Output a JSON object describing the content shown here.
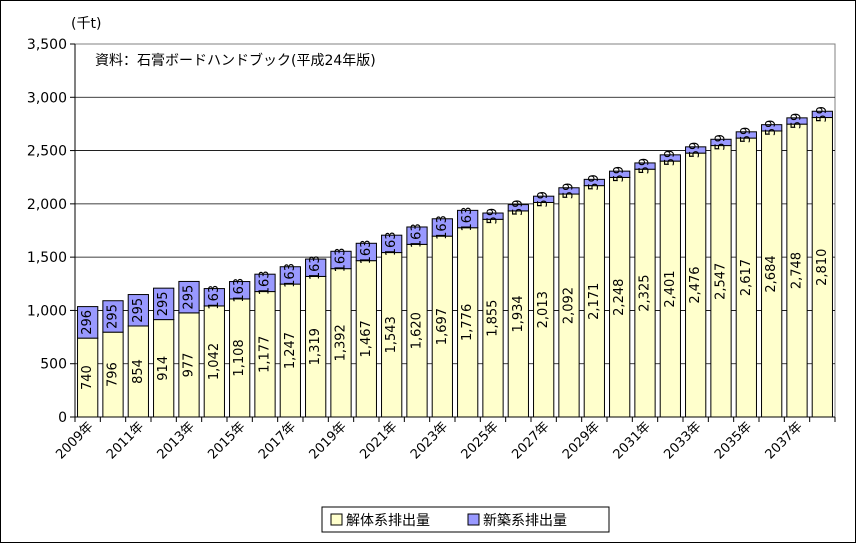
{
  "chart_data": {
    "type": "bar",
    "stacked": true,
    "unit_label": "(千t)",
    "source_note": "資料：石膏ボードハンドブック(平成24年版)",
    "ylim": [
      0,
      3500
    ],
    "yticks": [
      0,
      500,
      1000,
      1500,
      2000,
      2500,
      3000,
      3500
    ],
    "ytick_labels": [
      "0",
      "500",
      "1,000",
      "1,500",
      "2,000",
      "2,500",
      "3,000",
      "3,500"
    ],
    "grid": true,
    "legend_position": "bottom",
    "categories": [
      "2009年",
      "2010年",
      "2011年",
      "2012年",
      "2013年",
      "2014年",
      "2015年",
      "2016年",
      "2017年",
      "2018年",
      "2019年",
      "2020年",
      "2021年",
      "2022年",
      "2023年",
      "2024年",
      "2025年",
      "2026年",
      "2027年",
      "2028年",
      "2029年",
      "2030年",
      "2031年",
      "2032年",
      "2033年",
      "2034年",
      "2035年",
      "2036年",
      "2037年",
      "2038年"
    ],
    "category_labels": [
      "2009年",
      "",
      "2011年",
      "",
      "2013年",
      "",
      "2015年",
      "",
      "2017年",
      "",
      "2019年",
      "",
      "2021年",
      "",
      "2023年",
      "",
      "2025年",
      "",
      "2027年",
      "",
      "2029年",
      "",
      "2031年",
      "",
      "2033年",
      "",
      "2035年",
      "",
      "2037年",
      ""
    ],
    "series": [
      {
        "name": "解体系排出量",
        "color": "#ffffcc",
        "values": [
          740,
          796,
          854,
          914,
          977,
          1042,
          1108,
          1177,
          1247,
          1319,
          1392,
          1467,
          1543,
          1620,
          1697,
          1776,
          1855,
          1934,
          2013,
          2092,
          2171,
          2248,
          2325,
          2401,
          2476,
          2547,
          2617,
          2684,
          2748,
          2810
        ],
        "labels": [
          "740",
          "796",
          "854",
          "914",
          "977",
          "1,042",
          "1,108",
          "1,177",
          "1,247",
          "1,319",
          "1,392",
          "1,467",
          "1,543",
          "1,620",
          "1,697",
          "1,776",
          "1,855",
          "1,934",
          "2,013",
          "2,092",
          "2,171",
          "2,248",
          "2,325",
          "2,401",
          "2,476",
          "2,547",
          "2,617",
          "2,684",
          "2,748",
          "2,810"
        ]
      },
      {
        "name": "新築系排出量",
        "color": "#9999ff",
        "values": [
          296,
          295,
          295,
          295,
          295,
          163,
          163,
          163,
          163,
          163,
          163,
          163,
          163,
          163,
          163,
          163,
          59,
          59,
          59,
          59,
          59,
          59,
          59,
          59,
          59,
          59,
          59,
          59,
          59,
          59
        ],
        "labels": [
          "296",
          "295",
          "295",
          "295",
          "295",
          "163",
          "163",
          "163",
          "163",
          "163",
          "163",
          "163",
          "163",
          "163",
          "163",
          "163",
          "59",
          "59",
          "59",
          "59",
          "59",
          "59",
          "59",
          "59",
          "59",
          "59",
          "59",
          "59",
          "59",
          "59"
        ]
      }
    ]
  }
}
